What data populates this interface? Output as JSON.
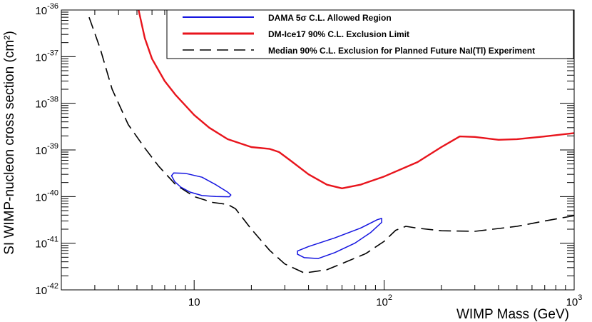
{
  "chart_data": {
    "type": "line",
    "xlabel": "WIMP Mass (GeV)",
    "ylabel": "SI WIMP-nucleon cross section (cm²)",
    "x_scale": "log",
    "y_scale": "log",
    "xlim": [
      2,
      1000
    ],
    "ylim": [
      1e-42,
      1e-36
    ],
    "x_ticks": [
      {
        "value": 10,
        "base": "10",
        "exp": ""
      },
      {
        "value": 100,
        "base": "10",
        "exp": "2"
      },
      {
        "value": 1000,
        "base": "10",
        "exp": "3"
      }
    ],
    "y_ticks": [
      {
        "value": 1e-36,
        "base": "10",
        "exp": "-36"
      },
      {
        "value": 1e-37,
        "base": "10",
        "exp": "-37"
      },
      {
        "value": 1e-38,
        "base": "10",
        "exp": "-38"
      },
      {
        "value": 1e-39,
        "base": "10",
        "exp": "-39"
      },
      {
        "value": 1e-40,
        "base": "10",
        "exp": "-40"
      },
      {
        "value": 1e-41,
        "base": "10",
        "exp": "-41"
      },
      {
        "value": 1e-42,
        "base": "10",
        "exp": "-42"
      }
    ],
    "legend": [
      {
        "label": "DAMA 5σ C.L. Allowed Region",
        "series": "dama"
      },
      {
        "label": "DM-Ice17 90% C.L. Exclusion Limit",
        "series": "dmice"
      },
      {
        "label": "Median 90% C.L. Exclusion for Planned Future NaI(Tl) Experiment",
        "series": "future"
      }
    ],
    "series": [
      {
        "name": "DM-Ice17 90% C.L. Exclusion Limit",
        "id": "dmice",
        "color": "#e8141c",
        "style": "solid",
        "points": [
          [
            5.1,
            1e-36
          ],
          [
            5.5,
            2.5e-37
          ],
          [
            6,
            9e-38
          ],
          [
            7,
            3e-38
          ],
          [
            8,
            1.5e-38
          ],
          [
            10,
            5.6e-39
          ],
          [
            12,
            3e-39
          ],
          [
            15,
            1.7e-39
          ],
          [
            20,
            1.15e-39
          ],
          [
            25,
            1.05e-39
          ],
          [
            28,
            9e-40
          ],
          [
            32,
            6e-40
          ],
          [
            40,
            3e-40
          ],
          [
            50,
            1.8e-40
          ],
          [
            60,
            1.5e-40
          ],
          [
            75,
            1.8e-40
          ],
          [
            100,
            2.7e-40
          ],
          [
            150,
            5.5e-40
          ],
          [
            200,
            1.15e-39
          ],
          [
            250,
            1.95e-39
          ],
          [
            300,
            1.9e-39
          ],
          [
            400,
            1.65e-39
          ],
          [
            500,
            1.7e-39
          ],
          [
            700,
            1.95e-39
          ],
          [
            1000,
            2.3e-39
          ]
        ]
      },
      {
        "name": "Median 90% C.L. Exclusion for Planned Future NaI(Tl) Experiment",
        "id": "future",
        "color": "#000000",
        "style": "dashed",
        "points": [
          [
            2.8,
            7e-37
          ],
          [
            3.2,
            1.5e-37
          ],
          [
            3.7,
            2e-38
          ],
          [
            4.5,
            3.5e-39
          ],
          [
            5.5,
            1.1e-39
          ],
          [
            6.5,
            4.5e-40
          ],
          [
            8,
            1.8e-40
          ],
          [
            10,
            1e-40
          ],
          [
            12.5,
            7.5e-41
          ],
          [
            15,
            6.8e-41
          ],
          [
            16.5,
            5.5e-41
          ],
          [
            20,
            2e-41
          ],
          [
            25,
            7e-42
          ],
          [
            30,
            3.6e-42
          ],
          [
            38,
            2.3e-42
          ],
          [
            50,
            2.7e-42
          ],
          [
            65,
            4.2e-42
          ],
          [
            80,
            6e-42
          ],
          [
            100,
            1.1e-41
          ],
          [
            115,
            1.9e-41
          ],
          [
            130,
            2.3e-41
          ],
          [
            150,
            2.1e-41
          ],
          [
            200,
            1.85e-41
          ],
          [
            300,
            1.8e-41
          ],
          [
            500,
            2.3e-41
          ],
          [
            700,
            3e-41
          ],
          [
            1000,
            3.9e-41
          ]
        ]
      },
      {
        "name": "DAMA 5σ C.L. Allowed Region",
        "id": "dama",
        "color": "#1414e0",
        "style": "solid",
        "regions": [
          [
            [
              7.6,
              2.8e-40
            ],
            [
              7.8,
              3.2e-40
            ],
            [
              9,
              3.15e-40
            ],
            [
              11,
              2.6e-40
            ],
            [
              13,
              1.8e-40
            ],
            [
              15,
              1.25e-40
            ],
            [
              15.6,
              1.08e-40
            ],
            [
              15.3,
              9.9e-41
            ],
            [
              13,
              1e-40
            ],
            [
              11,
              1.05e-40
            ],
            [
              9.5,
              1.25e-40
            ],
            [
              8.5,
              1.6e-40
            ],
            [
              7.9,
              2.1e-40
            ],
            [
              7.6,
              2.8e-40
            ]
          ],
          [
            [
              35,
              6.8e-42
            ],
            [
              40,
              8.5e-42
            ],
            [
              55,
              1.3e-41
            ],
            [
              75,
              2.1e-41
            ],
            [
              92,
              3.2e-41
            ],
            [
              97,
              3.4e-41
            ],
            [
              97,
              2.8e-41
            ],
            [
              85,
              1.7e-41
            ],
            [
              70,
              1e-41
            ],
            [
              55,
              6.3e-42
            ],
            [
              45,
              4.7e-42
            ],
            [
              38,
              4.9e-42
            ],
            [
              35,
              5.8e-42
            ],
            [
              35,
              6.8e-42
            ]
          ]
        ]
      }
    ]
  }
}
